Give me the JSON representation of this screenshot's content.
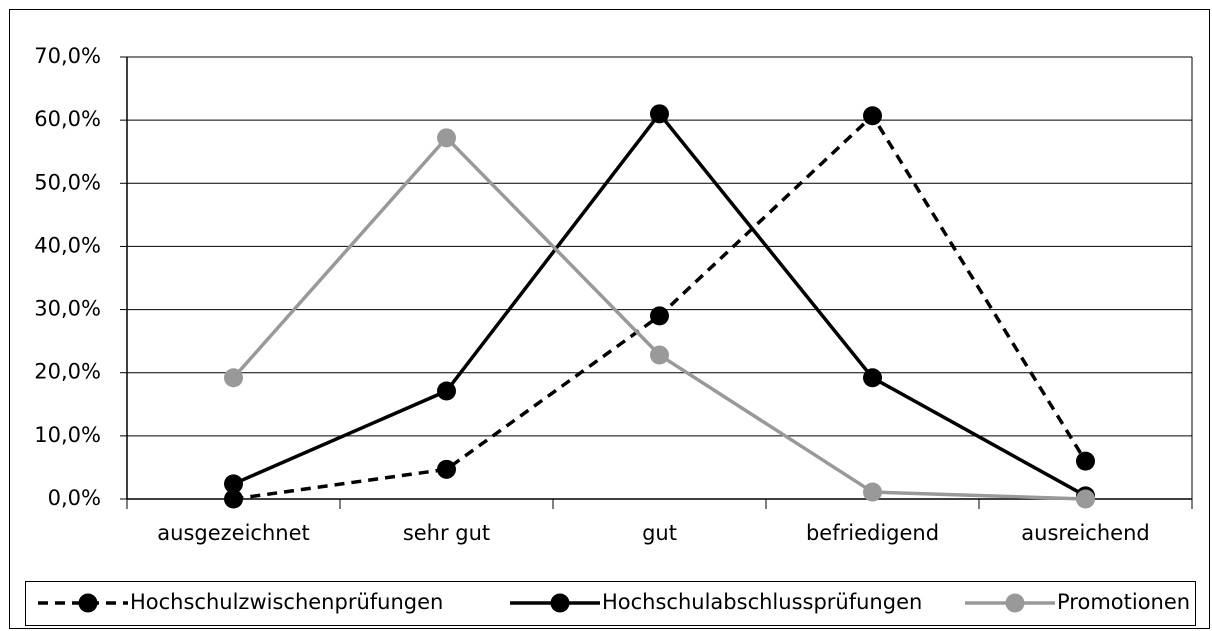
{
  "chart_data": {
    "type": "line",
    "categories": [
      "ausgezeichnet",
      "sehr gut",
      "gut",
      "befriedigend",
      "ausreichend"
    ],
    "series": [
      {
        "name": "Hochschulzwischenprüfungen",
        "color": "#000000",
        "style": "dashed",
        "values": [
          0.0,
          4.7,
          29.0,
          60.7,
          6.0
        ]
      },
      {
        "name": "Hochschulabschlussprüfungen",
        "color": "#000000",
        "style": "solid",
        "values": [
          2.4,
          17.1,
          61.0,
          19.2,
          0.5
        ]
      },
      {
        "name": "Promotionen",
        "color": "#999999",
        "style": "solid",
        "values": [
          19.2,
          57.2,
          22.8,
          1.1,
          0.0
        ]
      }
    ],
    "ylim": [
      0,
      70
    ],
    "yticks": [
      {
        "value": 0,
        "label": "0,0%"
      },
      {
        "value": 10,
        "label": "10,0%"
      },
      {
        "value": 20,
        "label": "20,0%"
      },
      {
        "value": 30,
        "label": "30,0%"
      },
      {
        "value": 40,
        "label": "40,0%"
      },
      {
        "value": 50,
        "label": "50,0%"
      },
      {
        "value": 60,
        "label": "60,0%"
      },
      {
        "value": 70,
        "label": "70,0%"
      }
    ],
    "grid": true,
    "legend": "bottom"
  }
}
